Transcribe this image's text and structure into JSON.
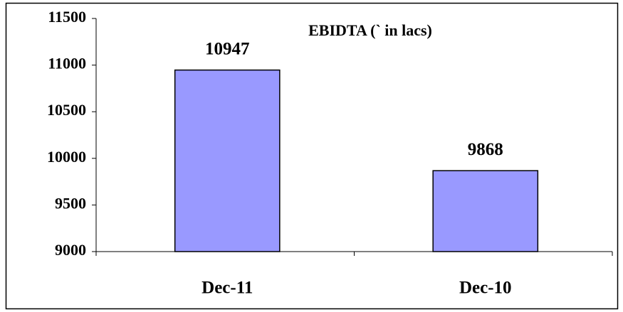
{
  "chart_data": {
    "type": "bar",
    "title": "EBIDTA (` in lacs)",
    "categories": [
      "Dec-11",
      "Dec-10"
    ],
    "values": [
      10947,
      9868
    ],
    "color": "#9999ff",
    "ylim": [
      9000,
      11500
    ],
    "yticks": [
      9000,
      9500,
      10000,
      10500,
      11000,
      11500
    ]
  }
}
